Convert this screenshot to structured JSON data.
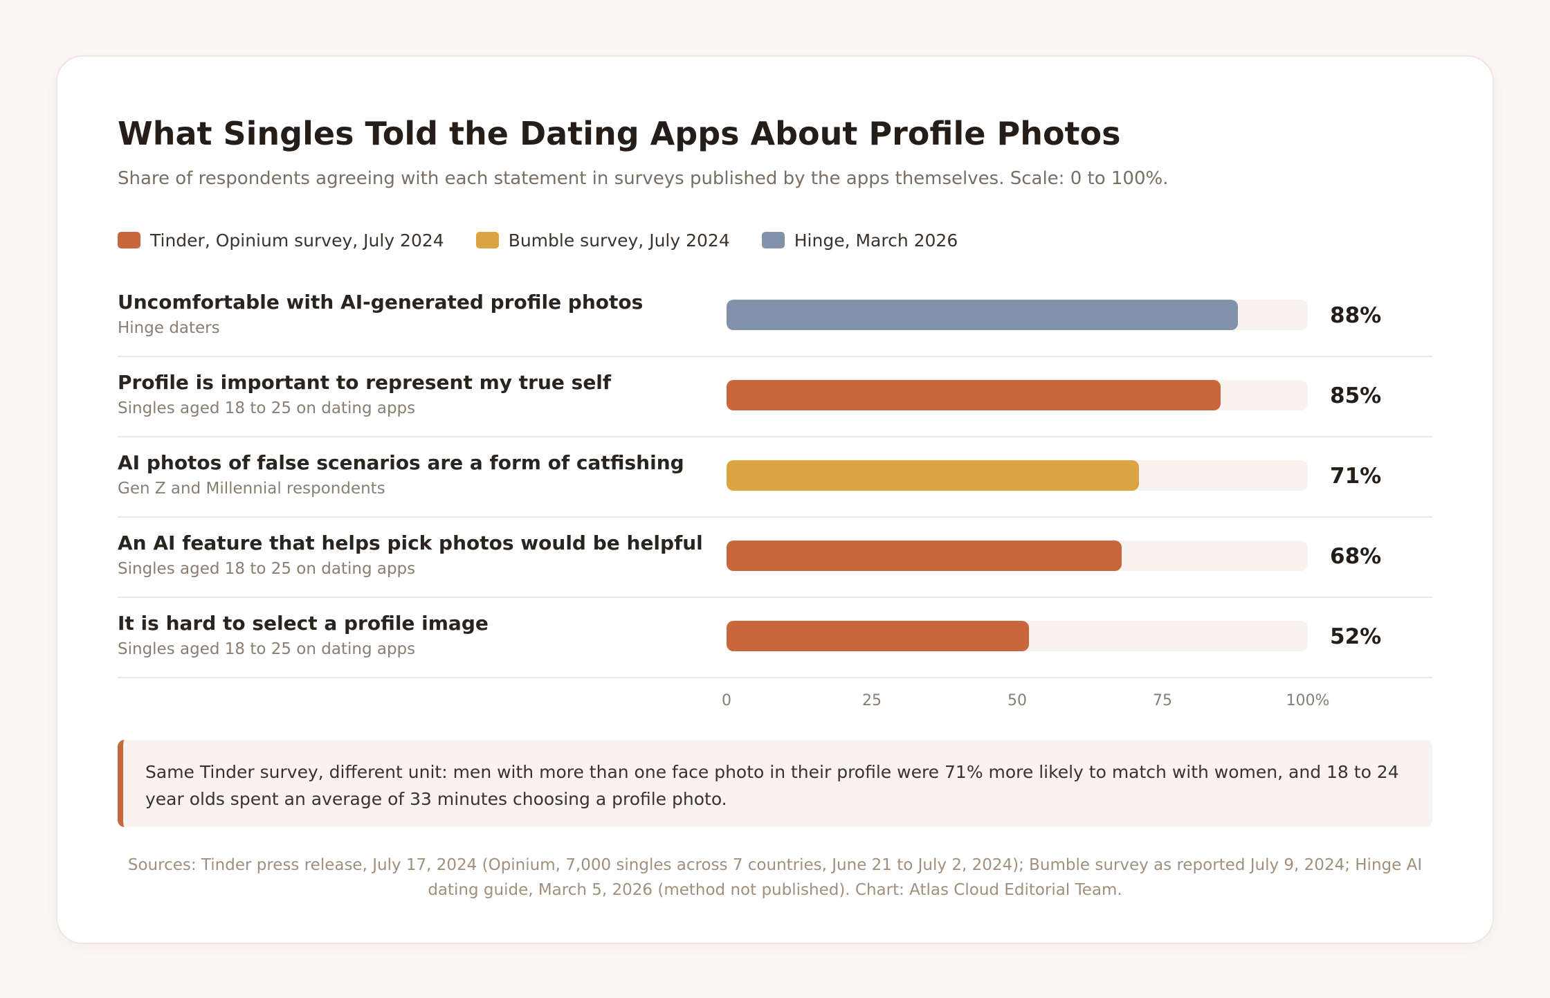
{
  "header": {
    "title": "What Singles Told the Dating Apps About Profile Photos",
    "subtitle": "Share of respondents agreeing with each statement in surveys published by the apps themselves. Scale: 0 to 100%."
  },
  "legend": [
    {
      "label": "Tinder, Opinium survey, July 2024",
      "color": "#c8663c",
      "icon": "legend-swatch"
    },
    {
      "label": "Bumble survey, July 2024",
      "color": "#d9a441",
      "icon": "legend-swatch"
    },
    {
      "label": "Hinge, March 2026",
      "color": "#8192aa",
      "icon": "legend-swatch"
    }
  ],
  "chart_data": {
    "type": "bar",
    "orientation": "horizontal",
    "title": "What Singles Told the Dating Apps About Profile Photos",
    "subtitle": "Share of respondents agreeing with each statement in surveys published by the apps themselves. Scale: 0 to 100%.",
    "xlim": [
      0,
      100
    ],
    "x_ticks": [
      "0",
      "25",
      "50",
      "75",
      "100%"
    ],
    "legend_position": "top-left",
    "grid": false,
    "rows": [
      {
        "label": "Uncomfortable with AI-generated profile photos",
        "sublabel": "Hinge daters",
        "value": 88,
        "display": "88%",
        "series": "Hinge, March 2026",
        "color": "#8192aa"
      },
      {
        "label": "Profile is important to represent my true self",
        "sublabel": "Singles aged 18 to 25 on dating apps",
        "value": 85,
        "display": "85%",
        "series": "Tinder, Opinium survey, July 2024",
        "color": "#c8663c"
      },
      {
        "label": "AI photos of false scenarios are a form of catfishing",
        "sublabel": "Gen Z and Millennial respondents",
        "value": 71,
        "display": "71%",
        "series": "Bumble survey, July 2024",
        "color": "#d9a441"
      },
      {
        "label": "An AI feature that helps pick photos would be helpful",
        "sublabel": "Singles aged 18 to 25 on dating apps",
        "value": 68,
        "display": "68%",
        "series": "Tinder, Opinium survey, July 2024",
        "color": "#c8663c"
      },
      {
        "label": "It is hard to select a profile image",
        "sublabel": "Singles aged 18 to 25 on dating apps",
        "value": 52,
        "display": "52%",
        "series": "Tinder, Opinium survey, July 2024",
        "color": "#c8663c"
      }
    ]
  },
  "note": "Same Tinder survey, different unit: men with more than one face photo in their profile were 71% more likely to match with women, and 18 to 24 year olds spent an average of 33 minutes choosing a profile photo.",
  "sources": "Sources: Tinder press release, July 17, 2024 (Opinium, 7,000 singles across 7 countries, June 21 to July 2, 2024); Bumble survey as reported July 9, 2024; Hinge AI dating guide, March 5, 2026 (method not published). Chart: Atlas Cloud Editorial Team.",
  "colors": {
    "accent": "#c8663c",
    "track": "#f8f3ee"
  }
}
